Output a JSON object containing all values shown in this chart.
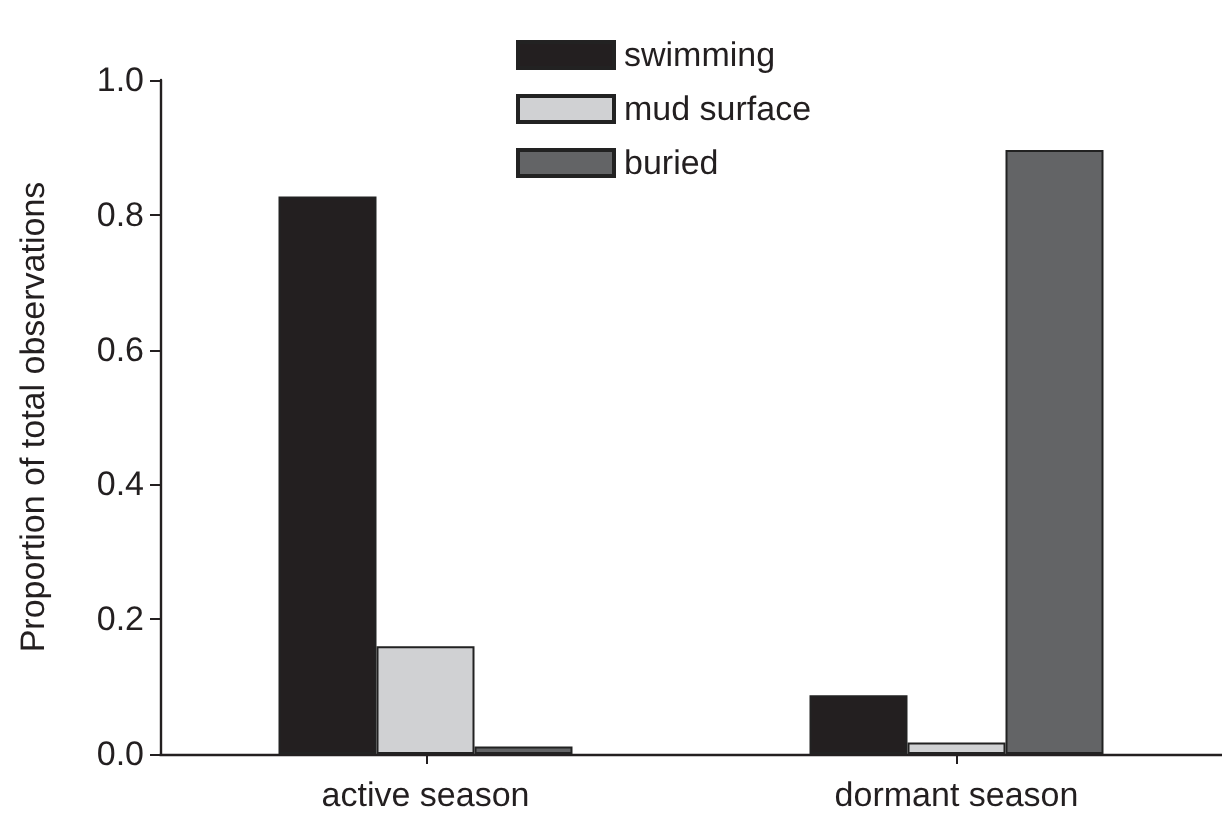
{
  "chart_data": {
    "type": "bar",
    "ylabel": "Proportion of total observations",
    "categories": [
      "active season",
      "dormant season"
    ],
    "series": [
      {
        "name": "swimming",
        "color": "#231f20",
        "values": [
          0.827,
          0.087
        ]
      },
      {
        "name": "mud surface",
        "color": "#d0d1d3",
        "values": [
          0.16,
          0.017
        ]
      },
      {
        "name": "buried",
        "color": "#636466",
        "values": [
          0.011,
          0.896
        ]
      }
    ],
    "ylim": [
      0,
      1
    ],
    "yticks": [
      {
        "value": 0,
        "label": "0.0"
      },
      0.2,
      0.4,
      0.6,
      0.8,
      {
        "value": 1,
        "label": "1.0"
      }
    ],
    "grid": false,
    "legend": "top"
  }
}
